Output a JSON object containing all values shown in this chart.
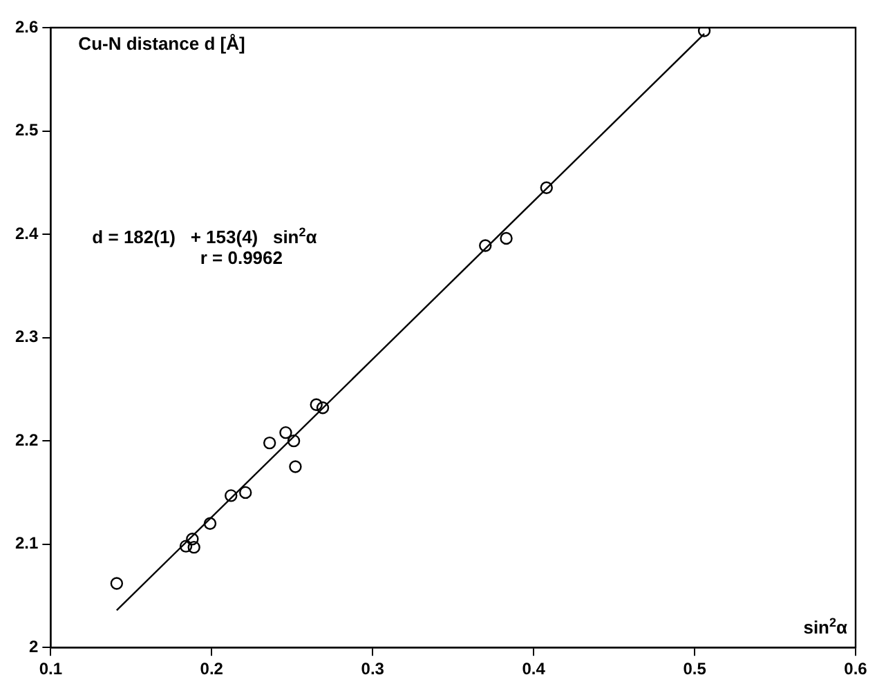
{
  "chart_data": {
    "type": "scatter",
    "ylabel": "Cu-N distance d [Å]",
    "xlabel": "sin$^{2}$α",
    "annotations": [
      "d = 182(1)   + 153(4)   sin$^{2}$α",
      "r = 0.9962"
    ],
    "series": [
      {
        "type": "scatter",
        "color": "#000000",
        "marker": "circle",
        "x": [
          0.141,
          0.184,
          0.188,
          0.189,
          0.199,
          0.212,
          0.221,
          0.236,
          0.246,
          0.251,
          0.252,
          0.265,
          0.269,
          0.37,
          0.383,
          0.408,
          0.506
        ],
        "values": [
          2.062,
          2.098,
          2.105,
          2.097,
          2.12,
          2.147,
          2.15,
          2.198,
          2.208,
          2.2,
          2.175,
          2.235,
          2.232,
          2.389,
          2.396,
          2.445,
          2.597
        ]
      },
      {
        "type": "line",
        "color": "#000000",
        "marker": "none",
        "x": [
          0.141,
          0.506
        ],
        "values": [
          2.036,
          2.594
        ]
      }
    ],
    "xlim": [
      0.1,
      0.6
    ],
    "xticks": [
      0.1,
      0.2,
      0.3,
      0.4,
      0.5,
      0.6
    ],
    "ylim": [
      2.0,
      2.6
    ],
    "yticks": [
      2.0,
      2.1,
      2.2,
      2.3,
      2.4,
      2.5,
      2.6
    ],
    "grid": false,
    "legend": false
  }
}
